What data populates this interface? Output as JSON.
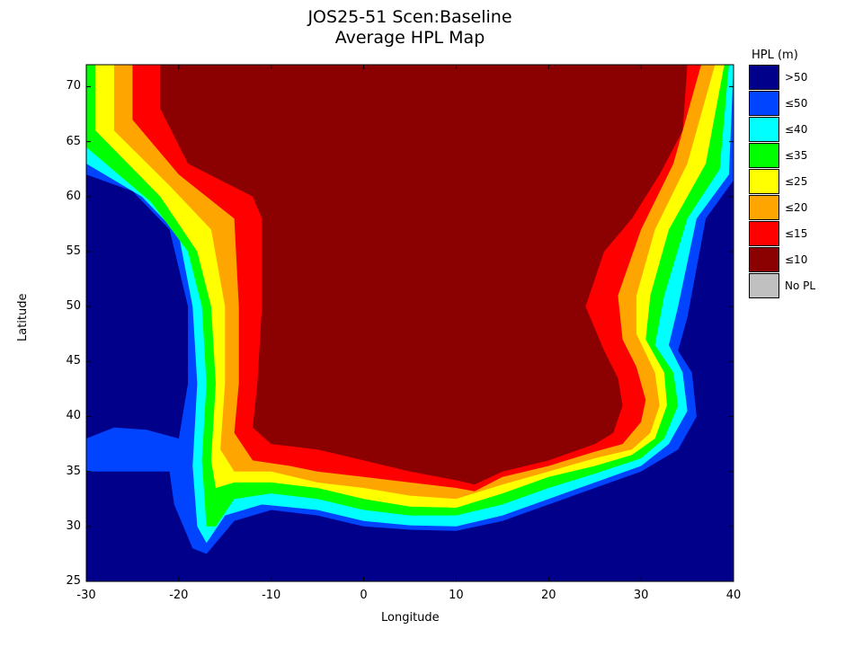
{
  "figure": {
    "title_line1": "JOS25-51 Scen:Baseline",
    "title_line2": "Average HPL Map"
  },
  "axes": {
    "xlabel": "Longitude",
    "ylabel": "Latitude",
    "xlim": [
      -30,
      40
    ],
    "ylim": [
      25,
      72
    ],
    "xticks": [
      "-30",
      "-20",
      "-10",
      "0",
      "10",
      "20",
      "30",
      "40"
    ],
    "yticks": [
      "25",
      "30",
      "35",
      "40",
      "45",
      "50",
      "55",
      "60",
      "65",
      "70"
    ]
  },
  "legend": {
    "title": "HPL (m)",
    "items": [
      {
        "label": ">50",
        "color": "#00008b"
      },
      {
        "label": "≤50",
        "color": "#0044ff"
      },
      {
        "label": "≤40",
        "color": "#00ffff"
      },
      {
        "label": "≤35",
        "color": "#00ff00"
      },
      {
        "label": "≤25",
        "color": "#ffff00"
      },
      {
        "label": "≤20",
        "color": "#ffa500"
      },
      {
        "label": "≤15",
        "color": "#ff0000"
      },
      {
        "label": "≤10",
        "color": "#8b0000"
      },
      {
        "label": "No PL",
        "color": "#c0c0c0"
      }
    ]
  },
  "chart_data": {
    "type": "heatmap",
    "title": "JOS25-51 Scen:Baseline Average HPL Map",
    "xlabel": "Longitude",
    "ylabel": "Latitude",
    "xlim": [
      -30,
      40
    ],
    "ylim": [
      25,
      72
    ],
    "grid": false,
    "legend_placement": "right",
    "colorbar": {
      "title": "HPL (m)",
      "bins": [
        ">50",
        "≤50",
        "≤40",
        "≤35",
        "≤25",
        "≤20",
        "≤15",
        "≤10",
        "No PL"
      ]
    },
    "contours": [
      {
        "level": "≤50",
        "color": "#0044ff",
        "points": [
          [
            -30,
            62
          ],
          [
            -25,
            60.5
          ],
          [
            -21,
            57
          ],
          [
            -19,
            50
          ],
          [
            -19,
            43
          ],
          [
            -20,
            38
          ],
          [
            -23.5,
            38.8
          ],
          [
            -27,
            39
          ],
          [
            -30,
            38
          ],
          [
            -30,
            35
          ],
          [
            -26,
            35
          ],
          [
            -23,
            35
          ],
          [
            -21,
            35
          ],
          [
            -20.5,
            32
          ],
          [
            -18.5,
            28
          ],
          [
            -17,
            27.5
          ],
          [
            -14,
            30.5
          ],
          [
            -10,
            31.5
          ],
          [
            -5,
            31
          ],
          [
            0,
            30
          ],
          [
            5,
            29.7
          ],
          [
            10,
            29.6
          ],
          [
            15,
            30.5
          ],
          [
            20,
            32
          ],
          [
            25,
            33.5
          ],
          [
            30,
            35
          ],
          [
            34,
            37
          ],
          [
            36,
            40
          ],
          [
            35.5,
            44
          ],
          [
            34,
            46
          ],
          [
            35,
            49
          ],
          [
            37,
            58
          ],
          [
            40,
            61.5
          ],
          [
            40,
            72
          ],
          [
            -30,
            72
          ]
        ]
      },
      {
        "level": "≤40",
        "color": "#00ffff",
        "points": [
          [
            -30,
            63
          ],
          [
            -24,
            60
          ],
          [
            -20,
            56.5
          ],
          [
            -18.5,
            50
          ],
          [
            -18,
            43
          ],
          [
            -18.5,
            35.5
          ],
          [
            -18,
            30
          ],
          [
            -17,
            28.5
          ],
          [
            -15,
            31
          ],
          [
            -11,
            32
          ],
          [
            -5,
            31.5
          ],
          [
            0,
            30.5
          ],
          [
            5,
            30.1
          ],
          [
            10,
            30
          ],
          [
            15,
            31
          ],
          [
            20,
            32.5
          ],
          [
            25,
            34
          ],
          [
            30,
            35.5
          ],
          [
            33,
            37.5
          ],
          [
            35,
            40.5
          ],
          [
            34.5,
            44
          ],
          [
            33,
            46.5
          ],
          [
            34,
            50
          ],
          [
            36,
            58
          ],
          [
            39.5,
            62
          ],
          [
            40,
            72
          ],
          [
            -30,
            72
          ]
        ]
      },
      {
        "level": "≤35",
        "color": "#00ff00",
        "points": [
          [
            -30,
            64.5
          ],
          [
            -23,
            59.5
          ],
          [
            -19,
            55
          ],
          [
            -17.5,
            50
          ],
          [
            -17,
            43
          ],
          [
            -17.5,
            36
          ],
          [
            -17,
            30
          ],
          [
            -16,
            30
          ],
          [
            -14,
            32.5
          ],
          [
            -10,
            33
          ],
          [
            -5,
            32.5
          ],
          [
            0,
            31.5
          ],
          [
            5,
            31
          ],
          [
            10,
            31
          ],
          [
            15,
            32
          ],
          [
            20,
            33.5
          ],
          [
            25,
            34.8
          ],
          [
            30,
            36.2
          ],
          [
            32.5,
            38
          ],
          [
            34,
            41
          ],
          [
            33.5,
            44
          ],
          [
            31.5,
            46.5
          ],
          [
            32.5,
            51
          ],
          [
            35,
            58
          ],
          [
            38.5,
            62.5
          ],
          [
            39.5,
            72
          ],
          [
            -30,
            72
          ]
        ]
      },
      {
        "level": "≤25",
        "color": "#ffff00",
        "points": [
          [
            -29,
            66
          ],
          [
            -22,
            60
          ],
          [
            -18,
            55
          ],
          [
            -16.5,
            50
          ],
          [
            -16,
            43
          ],
          [
            -16.5,
            36
          ],
          [
            -16,
            33.5
          ],
          [
            -14,
            34
          ],
          [
            -10,
            34
          ],
          [
            -5,
            33.5
          ],
          [
            0,
            32.5
          ],
          [
            5,
            31.8
          ],
          [
            10,
            31.7
          ],
          [
            15,
            33
          ],
          [
            20,
            34.5
          ],
          [
            25,
            35.5
          ],
          [
            29,
            36.5
          ],
          [
            31.5,
            38
          ],
          [
            32.8,
            41
          ],
          [
            32.5,
            44
          ],
          [
            30.5,
            47
          ],
          [
            31,
            51
          ],
          [
            33,
            57
          ],
          [
            37,
            63
          ],
          [
            39,
            72
          ],
          [
            -29,
            72
          ]
        ]
      },
      {
        "level": "≤20",
        "color": "#ffa500",
        "points": [
          [
            -27,
            66
          ],
          [
            -21,
            61
          ],
          [
            -16.5,
            57
          ],
          [
            -15,
            50
          ],
          [
            -15,
            43
          ],
          [
            -15.5,
            37
          ],
          [
            -14,
            35
          ],
          [
            -10,
            35
          ],
          [
            -5,
            34
          ],
          [
            0,
            33.5
          ],
          [
            5,
            32.8
          ],
          [
            10,
            32.5
          ],
          [
            15,
            33.8
          ],
          [
            20,
            35
          ],
          [
            25,
            36.2
          ],
          [
            29,
            37
          ],
          [
            31,
            38.5
          ],
          [
            32,
            41
          ],
          [
            31.5,
            44
          ],
          [
            29.5,
            47.5
          ],
          [
            29.5,
            51
          ],
          [
            31.5,
            57
          ],
          [
            35,
            63
          ],
          [
            38,
            72
          ],
          [
            -27,
            72
          ]
        ]
      },
      {
        "level": "≤15",
        "color": "#ff0000",
        "points": [
          [
            -25,
            67
          ],
          [
            -20,
            62
          ],
          [
            -14,
            58
          ],
          [
            -13.5,
            50
          ],
          [
            -13.5,
            43
          ],
          [
            -14,
            38.5
          ],
          [
            -12,
            36
          ],
          [
            -8,
            35.5
          ],
          [
            -5,
            35
          ],
          [
            0,
            34.5
          ],
          [
            5,
            34
          ],
          [
            10,
            33.5
          ],
          [
            12,
            33.2
          ],
          [
            15,
            34.5
          ],
          [
            20,
            35.5
          ],
          [
            25,
            36.8
          ],
          [
            28,
            37.5
          ],
          [
            30,
            39.5
          ],
          [
            30.5,
            41.5
          ],
          [
            29.5,
            44.5
          ],
          [
            28,
            47
          ],
          [
            27.5,
            51
          ],
          [
            30,
            57
          ],
          [
            33.5,
            63
          ],
          [
            36.5,
            72
          ],
          [
            -25,
            72
          ]
        ]
      },
      {
        "level": "≤10",
        "color": "#8b0000",
        "points": [
          [
            -22,
            68
          ],
          [
            -19,
            63
          ],
          [
            -12,
            60
          ],
          [
            -11,
            58
          ],
          [
            -11,
            50
          ],
          [
            -11.5,
            43
          ],
          [
            -12,
            39
          ],
          [
            -10,
            37.5
          ],
          [
            -5,
            37
          ],
          [
            0,
            36
          ],
          [
            5,
            35
          ],
          [
            10,
            34.2
          ],
          [
            12,
            33.8
          ],
          [
            15,
            35
          ],
          [
            20,
            36
          ],
          [
            25,
            37.5
          ],
          [
            27,
            38.5
          ],
          [
            28,
            41
          ],
          [
            27.5,
            43.5
          ],
          [
            26,
            46
          ],
          [
            24,
            50
          ],
          [
            26,
            55
          ],
          [
            29,
            58
          ],
          [
            32,
            62
          ],
          [
            34.5,
            66
          ],
          [
            35,
            72
          ],
          [
            -22,
            72
          ]
        ]
      }
    ]
  }
}
